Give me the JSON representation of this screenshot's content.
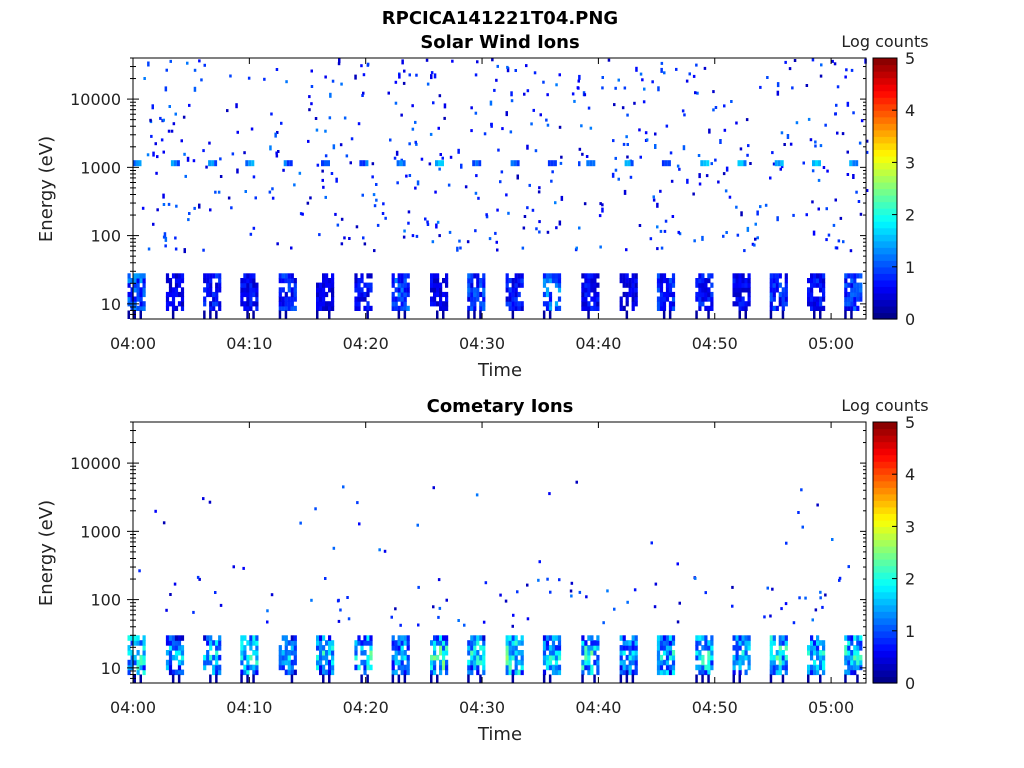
{
  "figure_title": "RPCICA141221T04.PNG",
  "chart_data": [
    {
      "type": "heatmap",
      "title": "Solar Wind Ions",
      "xlabel": "Time",
      "ylabel": "Energy (eV)",
      "x_ticks": [
        "04:00",
        "04:10",
        "04:20",
        "04:30",
        "04:40",
        "04:50",
        "05:00"
      ],
      "x_tick_minutes": [
        0,
        10,
        20,
        30,
        40,
        50,
        60
      ],
      "xlim_minutes": [
        0,
        63
      ],
      "y_scale": "log",
      "y_ticks": [
        "10",
        "100",
        "1000",
        "10000"
      ],
      "y_tick_values": [
        10,
        100,
        1000,
        10000
      ],
      "ylim": [
        6,
        40000
      ],
      "colorbar": {
        "label": "Log counts",
        "ticks": [
          "0",
          "1",
          "2",
          "3",
          "4",
          "5"
        ],
        "range": [
          0,
          5
        ],
        "colormap": "jet"
      },
      "sweep_period_min": 3.2,
      "low_energy_band_eV": [
        8,
        28
      ],
      "peak_band_eV": 1150,
      "bursts": [
        {
          "t": 0.3,
          "log_counts": 1.2
        },
        {
          "t": 3.6,
          "log_counts": 0.6
        },
        {
          "t": 6.8,
          "log_counts": 0.8
        },
        {
          "t": 10.0,
          "log_counts": 0.7
        },
        {
          "t": 13.3,
          "log_counts": 0.9
        },
        {
          "t": 16.5,
          "log_counts": 0.6
        },
        {
          "t": 19.8,
          "log_counts": 0.7
        },
        {
          "t": 23.0,
          "log_counts": 1.1
        },
        {
          "t": 26.3,
          "log_counts": 0.6
        },
        {
          "t": 29.5,
          "log_counts": 1.0
        },
        {
          "t": 32.8,
          "log_counts": 0.8
        },
        {
          "t": 36.0,
          "log_counts": 1.3
        },
        {
          "t": 39.3,
          "log_counts": 0.7
        },
        {
          "t": 42.6,
          "log_counts": 0.6
        },
        {
          "t": 45.8,
          "log_counts": 0.9
        },
        {
          "t": 49.1,
          "log_counts": 0.8
        },
        {
          "t": 52.3,
          "log_counts": 0.7
        },
        {
          "t": 55.5,
          "log_counts": 0.9
        },
        {
          "t": 58.7,
          "log_counts": 0.8
        },
        {
          "t": 61.9,
          "log_counts": 1.0
        }
      ]
    },
    {
      "type": "heatmap",
      "title": "Cometary Ions",
      "xlabel": "Time",
      "ylabel": "Energy (eV)",
      "x_ticks": [
        "04:00",
        "04:10",
        "04:20",
        "04:30",
        "04:40",
        "04:50",
        "05:00"
      ],
      "x_tick_minutes": [
        0,
        10,
        20,
        30,
        40,
        50,
        60
      ],
      "xlim_minutes": [
        0,
        63
      ],
      "y_scale": "log",
      "y_ticks": [
        "10",
        "100",
        "1000",
        "10000"
      ],
      "y_tick_values": [
        10,
        100,
        1000,
        10000
      ],
      "ylim": [
        6,
        40000
      ],
      "colorbar": {
        "label": "Log counts",
        "ticks": [
          "0",
          "1",
          "2",
          "3",
          "4",
          "5"
        ],
        "range": [
          0,
          5
        ],
        "colormap": "jet"
      },
      "sweep_period_min": 3.2,
      "low_energy_band_eV": [
        8,
        30
      ],
      "bursts": [
        {
          "t": 0.3,
          "log_counts": 2.2
        },
        {
          "t": 3.6,
          "log_counts": 1.8
        },
        {
          "t": 6.8,
          "log_counts": 1.9
        },
        {
          "t": 10.0,
          "log_counts": 2.1
        },
        {
          "t": 13.3,
          "log_counts": 1.7
        },
        {
          "t": 16.5,
          "log_counts": 2.0
        },
        {
          "t": 19.8,
          "log_counts": 2.2
        },
        {
          "t": 23.0,
          "log_counts": 1.8
        },
        {
          "t": 26.3,
          "log_counts": 2.4
        },
        {
          "t": 29.5,
          "log_counts": 2.0
        },
        {
          "t": 32.8,
          "log_counts": 2.3
        },
        {
          "t": 36.0,
          "log_counts": 1.9
        },
        {
          "t": 39.3,
          "log_counts": 2.2
        },
        {
          "t": 42.6,
          "log_counts": 1.8
        },
        {
          "t": 45.8,
          "log_counts": 2.0
        },
        {
          "t": 49.1,
          "log_counts": 2.1
        },
        {
          "t": 52.3,
          "log_counts": 1.9
        },
        {
          "t": 55.5,
          "log_counts": 2.2
        },
        {
          "t": 58.7,
          "log_counts": 2.0
        },
        {
          "t": 61.9,
          "log_counts": 2.1
        }
      ]
    }
  ]
}
